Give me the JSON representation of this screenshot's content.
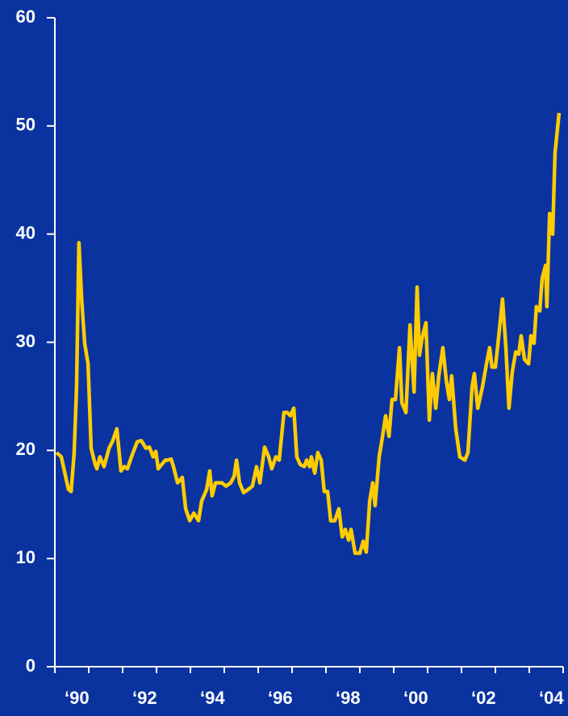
{
  "chart_data": {
    "type": "line",
    "x": [
      1990.05,
      1990.19,
      1990.4,
      1990.48,
      1990.57,
      1990.64,
      1990.71,
      1990.79,
      1990.88,
      1990.98,
      1991.07,
      1991.19,
      1991.24,
      1991.33,
      1991.45,
      1991.6,
      1991.71,
      1991.83,
      1991.95,
      1992.05,
      1992.14,
      1992.26,
      1992.43,
      1992.55,
      1992.69,
      1992.79,
      1992.9,
      1992.98,
      1993.05,
      1993.26,
      1993.33,
      1993.43,
      1993.5,
      1993.62,
      1993.76,
      1993.86,
      1993.98,
      1994.1,
      1994.24,
      1994.33,
      1994.48,
      1994.57,
      1994.64,
      1994.74,
      1994.93,
      1995.05,
      1995.19,
      1995.29,
      1995.36,
      1995.45,
      1995.57,
      1995.71,
      1995.83,
      1995.95,
      1996.05,
      1996.19,
      1996.31,
      1996.4,
      1996.52,
      1996.62,
      1996.76,
      1996.86,
      1996.95,
      1997.05,
      1997.14,
      1997.24,
      1997.36,
      1997.43,
      1997.52,
      1997.57,
      1997.67,
      1997.76,
      1997.86,
      1997.95,
      1998.05,
      1998.14,
      1998.26,
      1998.38,
      1998.48,
      1998.57,
      1998.67,
      1998.74,
      1998.86,
      1999.0,
      1999.1,
      1999.19,
      1999.29,
      1999.38,
      1999.45,
      1999.57,
      1999.67,
      1999.76,
      1999.86,
      1999.95,
      2000.05,
      2000.17,
      2000.24,
      2000.36,
      2000.48,
      2000.6,
      2000.69,
      2000.76,
      2000.83,
      2000.95,
      2001.05,
      2001.14,
      2001.24,
      2001.33,
      2001.45,
      2001.55,
      2001.64,
      2001.71,
      2001.83,
      2001.95,
      2002.1,
      2002.19,
      2002.31,
      2002.38,
      2002.48,
      2002.62,
      2002.76,
      2002.83,
      2002.9,
      2003.0,
      2003.1,
      2003.21,
      2003.31,
      2003.4,
      2003.5,
      2003.6,
      2003.69,
      2003.76,
      2003.86,
      2003.98,
      2004.05,
      2004.14,
      2004.21,
      2004.31,
      2004.38,
      2004.48,
      2004.52,
      2004.6,
      2004.69,
      2004.76,
      2004.88
    ],
    "series": [
      {
        "color": "#ffcc00",
        "values": [
          19.8,
          19.4,
          16.4,
          16.2,
          19.8,
          25.8,
          39.2,
          34,
          29.9,
          28,
          20.2,
          18.7,
          18.3,
          19.4,
          18.5,
          20.2,
          20.9,
          22,
          18.1,
          18.5,
          18.3,
          19.4,
          20.8,
          20.9,
          20.2,
          20.3,
          19.4,
          19.9,
          18.3,
          19.1,
          19.1,
          19.2,
          18.5,
          17,
          17.5,
          14.6,
          13.5,
          14.2,
          13.5,
          15.3,
          16.4,
          18.1,
          15.8,
          17,
          17,
          16.7,
          17,
          17.6,
          19.1,
          17,
          16.1,
          16.4,
          16.7,
          18.5,
          17,
          20.3,
          19.4,
          18.3,
          19.4,
          19.1,
          23.5,
          23.5,
          23.2,
          23.9,
          19.4,
          18.7,
          18.5,
          19.1,
          18.5,
          19.4,
          17.9,
          19.8,
          19.1,
          16.2,
          16.2,
          13.5,
          13.5,
          14.6,
          12,
          12.7,
          11.7,
          12.7,
          10.5,
          10.5,
          11.6,
          10.6,
          15.3,
          17,
          14.9,
          19.4,
          21.3,
          23.2,
          21.3,
          24.7,
          24.7,
          29.5,
          24.4,
          23.5,
          31.6,
          25.4,
          35.1,
          28.8,
          30.3,
          31.8,
          22.8,
          27.1,
          23.9,
          26.9,
          29.5,
          26.5,
          24.7,
          26.9,
          22,
          19.4,
          19.1,
          19.8,
          25.8,
          27.1,
          23.9,
          25.9,
          28.4,
          29.5,
          27.7,
          27.7,
          30.6,
          34,
          29.5,
          23.9,
          27.3,
          29.1,
          28.9,
          30.6,
          28.4,
          28,
          30.6,
          29.9,
          33.3,
          32.9,
          35.9,
          37.1,
          33.3,
          41.9,
          40,
          47.5,
          51.2
        ]
      }
    ],
    "xlim": [
      1990,
      2005
    ],
    "xticks": [
      {
        "value": 1990,
        "label": "‘90"
      },
      {
        "value": 1992,
        "label": "‘92"
      },
      {
        "value": 1994,
        "label": "‘94"
      },
      {
        "value": 1996,
        "label": "‘96"
      },
      {
        "value": 1998,
        "label": "‘98"
      },
      {
        "value": 2000,
        "label": "‘00"
      },
      {
        "value": 2002,
        "label": "‘02"
      },
      {
        "value": 2004,
        "label": "‘04"
      }
    ],
    "xminorticks": [
      1991,
      1993,
      1995,
      1997,
      1999,
      2001,
      2003,
      2005
    ],
    "ylim": [
      0,
      60
    ],
    "yticks": [
      0,
      10,
      20,
      30,
      40,
      50,
      60
    ],
    "background": "#0a33a0",
    "axis_color": "#ffffff"
  }
}
